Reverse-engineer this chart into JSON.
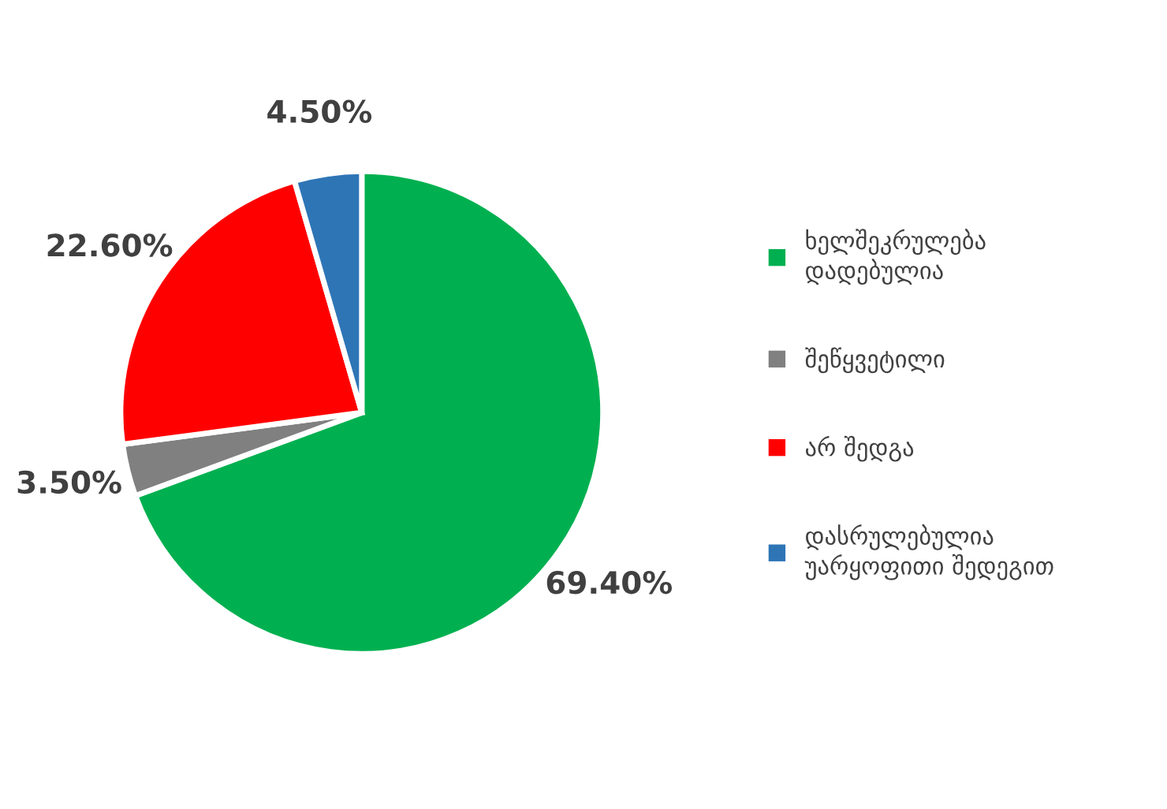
{
  "chart_data": {
    "type": "pie",
    "categories": [
      "ხელშეკრულება დადებულია",
      "შეწყვეტილი",
      "არ შედგა",
      "დასრულებულია უარყოფითი შედეგით"
    ],
    "values": [
      69.4,
      3.5,
      22.6,
      4.5
    ],
    "colors": [
      "#00b050",
      "#808080",
      "#ff0000",
      "#2e75b6"
    ],
    "value_labels": [
      "69.40%",
      "3.50%",
      "22.60%",
      "4.50%"
    ],
    "legend": "right"
  }
}
